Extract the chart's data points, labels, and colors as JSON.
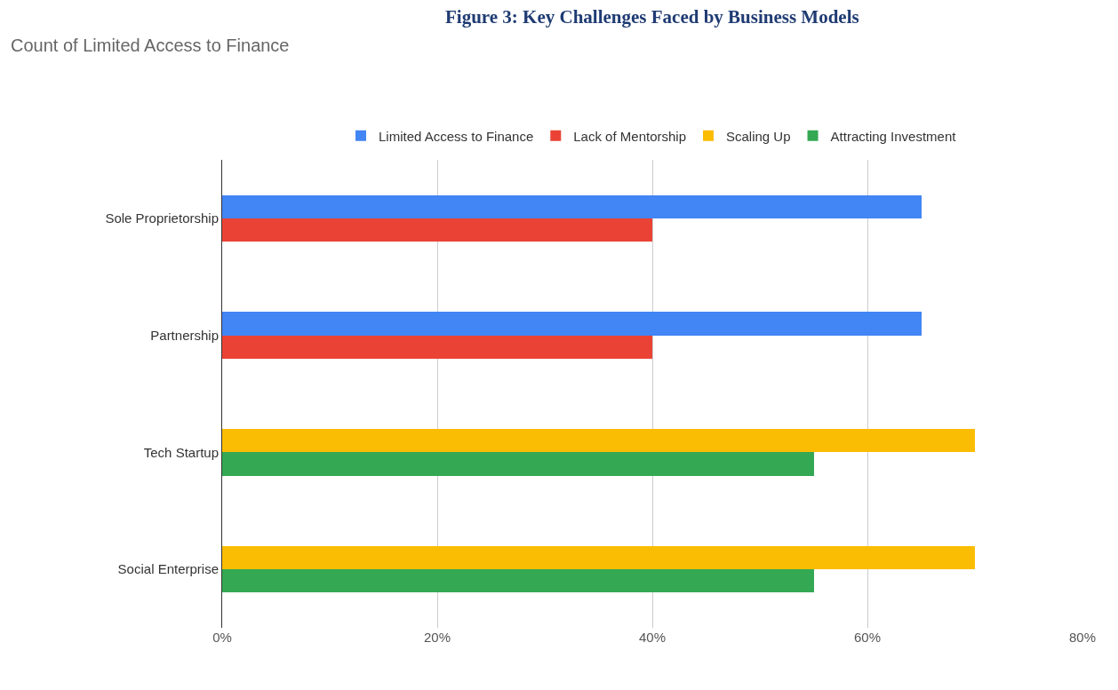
{
  "chart_data": {
    "type": "bar",
    "orientation": "horizontal",
    "title": "Figure 3: Key Challenges Faced by Business Models",
    "subtitle": "Count of Limited Access to Finance",
    "categories": [
      "Sole Proprietorship",
      "Partnership",
      "Tech Startup",
      "Social Enterprise"
    ],
    "series": [
      {
        "name": "Limited Access to Finance",
        "color": "#4285f4",
        "values": [
          65,
          65,
          null,
          null
        ]
      },
      {
        "name": "Lack of Mentorship",
        "color": "#ea4335",
        "values": [
          40,
          40,
          null,
          null
        ]
      },
      {
        "name": "Scaling Up",
        "color": "#fbbc04",
        "values": [
          null,
          null,
          70,
          70
        ]
      },
      {
        "name": "Attracting Investment",
        "color": "#34a853",
        "values": [
          null,
          null,
          55,
          55
        ]
      }
    ],
    "xlim": [
      0,
      80
    ],
    "xticks": [
      {
        "value": 0,
        "label": "0%"
      },
      {
        "value": 20,
        "label": "20%"
      },
      {
        "value": 40,
        "label": "40%"
      },
      {
        "value": 60,
        "label": "60%"
      },
      {
        "value": 80,
        "label": "80%"
      }
    ],
    "grid": "x",
    "legend": "top"
  }
}
